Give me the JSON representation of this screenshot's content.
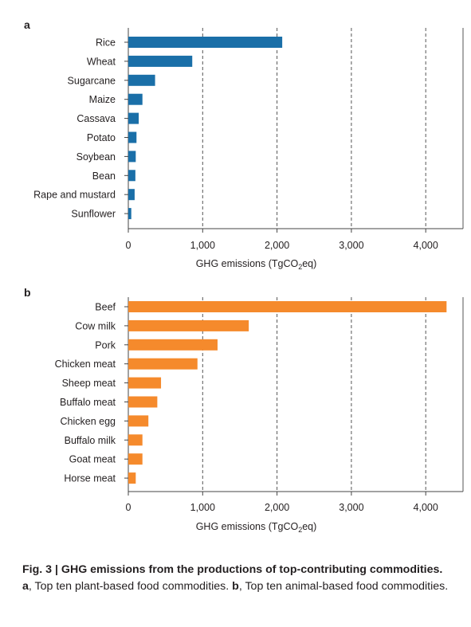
{
  "chart_data": [
    {
      "panel": "a",
      "type": "bar",
      "orientation": "horizontal",
      "categories": [
        "Rice",
        "Wheat",
        "Sugarcane",
        "Maize",
        "Cassava",
        "Potato",
        "Soybean",
        "Bean",
        "Rape and mustard",
        "Sunflower"
      ],
      "values": [
        2070,
        860,
        360,
        190,
        140,
        110,
        100,
        95,
        85,
        40
      ],
      "color": "#1a6fa8",
      "xlabel_main": "GHG emissions (TgCO",
      "xlabel_sub": "2",
      "xlabel_end": "eq)",
      "xlim": [
        0,
        4500
      ],
      "xticks": [
        0,
        1000,
        2000,
        3000,
        4000
      ],
      "xtick_labels": [
        "0",
        "1,000",
        "2,000",
        "3,000",
        "4,000"
      ],
      "grid": "vertical dashed"
    },
    {
      "panel": "b",
      "type": "bar",
      "orientation": "horizontal",
      "categories": [
        "Beef",
        "Cow milk",
        "Pork",
        "Chicken meat",
        "Sheep meat",
        "Buffalo meat",
        "Chicken egg",
        "Buffalo milk",
        "Goat meat",
        "Horse meat"
      ],
      "values": [
        4280,
        1620,
        1200,
        930,
        440,
        390,
        270,
        190,
        190,
        100
      ],
      "color": "#f58a2c",
      "xlabel_main": "GHG emissions (TgCO",
      "xlabel_sub": "2",
      "xlabel_end": "eq)",
      "xlim": [
        0,
        4500
      ],
      "xticks": [
        0,
        1000,
        2000,
        3000,
        4000
      ],
      "xtick_labels": [
        "0",
        "1,000",
        "2,000",
        "3,000",
        "4,000"
      ],
      "grid": "vertical dashed"
    }
  ],
  "caption": {
    "fig_label": "Fig. 3 | ",
    "title": "GHG emissions from the productions of top-contributing commodities.",
    "a_label": "a",
    "a_text": ", Top ten plant-based food commodities. ",
    "b_label": "b",
    "b_text": ", Top ten animal-based food commodities."
  }
}
